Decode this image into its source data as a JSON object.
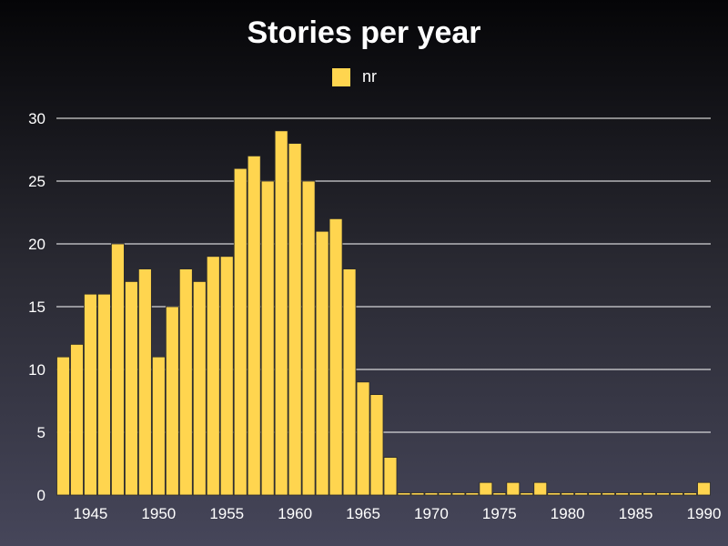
{
  "chart_data": {
    "type": "bar",
    "title": "Stories per year",
    "xlabel": "",
    "ylabel": "",
    "series": [
      {
        "name": "nr",
        "color": "#ffd54f",
        "x": [
          1943,
          1944,
          1945,
          1946,
          1947,
          1948,
          1949,
          1950,
          1951,
          1952,
          1953,
          1954,
          1955,
          1956,
          1957,
          1958,
          1959,
          1960,
          1961,
          1962,
          1963,
          1964,
          1965,
          1966,
          1967,
          1968,
          1969,
          1970,
          1971,
          1972,
          1973,
          1974,
          1975,
          1976,
          1977,
          1978,
          1979,
          1980,
          1981,
          1982,
          1983,
          1984,
          1985,
          1986,
          1987,
          1988,
          1989,
          1990
        ],
        "values": [
          11,
          12,
          16,
          16,
          20,
          17,
          18,
          11,
          15,
          18,
          17,
          19,
          19,
          26,
          27,
          25,
          29,
          28,
          25,
          21,
          22,
          18,
          9,
          8,
          3,
          0,
          0,
          0,
          0,
          0,
          0,
          1,
          0,
          1,
          0,
          1,
          0,
          0,
          0,
          0,
          0,
          0,
          0,
          0,
          0,
          0,
          0,
          1
        ]
      }
    ],
    "xlim": [
      1942.5,
      1990.5
    ],
    "ylim": [
      0,
      30
    ],
    "yticks": [
      "0",
      "5",
      "10",
      "15",
      "20",
      "25",
      "30"
    ],
    "xticks": [
      "1945",
      "1950",
      "1955",
      "1960",
      "1965",
      "1970",
      "1975",
      "1980",
      "1985",
      "1990"
    ],
    "grid": true,
    "legend_position": "top-center"
  }
}
